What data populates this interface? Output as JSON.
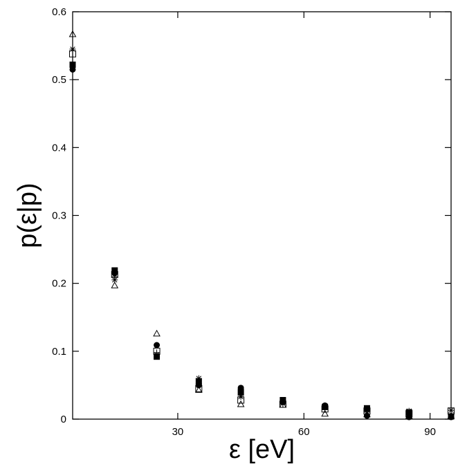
{
  "chart_data": {
    "type": "scatter",
    "title": "",
    "xlabel": "ε [eV]",
    "ylabel": "p(ε|p)",
    "xlim": [
      5,
      95
    ],
    "ylim": [
      0,
      0.6
    ],
    "xticks": [
      30,
      60,
      90
    ],
    "yticks": [
      0,
      0.1,
      0.2,
      0.3,
      0.4,
      0.5,
      0.6
    ],
    "xtick_labels": [
      "30",
      "60",
      "90"
    ],
    "ytick_labels": [
      "0",
      "0.1",
      "0.2",
      "0.3",
      "0.4",
      "0.5",
      "0.6"
    ],
    "grid": false,
    "legend": "none",
    "series": [
      {
        "marker": "triangle",
        "points": [
          [
            5,
            0.567
          ],
          [
            15,
            0.197
          ],
          [
            25,
            0.126
          ],
          [
            35,
            0.043
          ],
          [
            45,
            0.022
          ],
          [
            55,
            0.021
          ],
          [
            65,
            0.008
          ],
          [
            75,
            0.007
          ],
          [
            85,
            0.005
          ],
          [
            95,
            0.005
          ]
        ]
      },
      {
        "marker": "star",
        "points": [
          [
            5,
            0.545
          ],
          [
            15,
            0.205
          ],
          [
            25,
            0.095
          ],
          [
            35,
            0.06
          ],
          [
            45,
            0.033
          ],
          [
            55,
            0.025
          ],
          [
            65,
            0.018
          ],
          [
            75,
            0.013
          ],
          [
            85,
            0.012
          ],
          [
            95,
            0.013
          ]
        ]
      },
      {
        "marker": "open-square",
        "points": [
          [
            5,
            0.538
          ],
          [
            15,
            0.213
          ],
          [
            25,
            0.1
          ],
          [
            35,
            0.045
          ],
          [
            45,
            0.028
          ],
          [
            55,
            0.022
          ],
          [
            65,
            0.015
          ],
          [
            75,
            0.012
          ],
          [
            85,
            0.008
          ],
          [
            95,
            0.012
          ]
        ]
      },
      {
        "marker": "filled-square",
        "points": [
          [
            5,
            0.522
          ],
          [
            15,
            0.219
          ],
          [
            25,
            0.092
          ],
          [
            35,
            0.055
          ],
          [
            45,
            0.04
          ],
          [
            55,
            0.028
          ],
          [
            65,
            0.018
          ],
          [
            75,
            0.016
          ],
          [
            85,
            0.01
          ],
          [
            95,
            0.004
          ]
        ]
      },
      {
        "marker": "filled-circle",
        "points": [
          [
            5,
            0.515
          ],
          [
            15,
            0.215
          ],
          [
            25,
            0.109
          ],
          [
            35,
            0.05
          ],
          [
            45,
            0.046
          ],
          [
            55,
            0.025
          ],
          [
            65,
            0.02
          ],
          [
            75,
            0.005
          ],
          [
            85,
            0.003
          ],
          [
            95,
            0.003
          ]
        ]
      },
      {
        "marker": "plus",
        "points": [
          [
            5,
            0.5
          ],
          [
            15,
            0.21
          ],
          [
            25,
            0.098
          ],
          [
            35,
            0.052
          ],
          [
            45,
            0.035
          ],
          [
            55,
            0.022
          ],
          [
            65,
            0.014
          ],
          [
            75,
            0.011
          ],
          [
            85,
            0.009
          ],
          [
            95,
            0.007
          ]
        ]
      }
    ]
  }
}
